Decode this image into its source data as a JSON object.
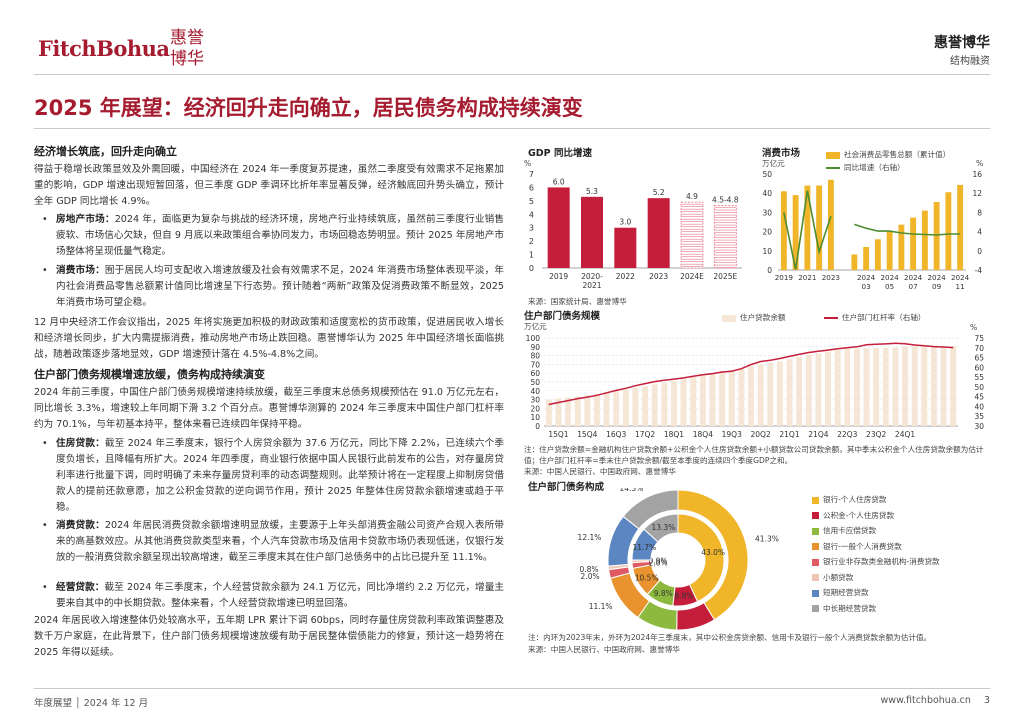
{
  "header": {
    "logo_en": "FitchBohua",
    "logo_cn": "惠誉博华",
    "brand_cn": "惠誉博华",
    "brand_sub": "结构融资"
  },
  "title": "2025 年展望：经济回升走向确立，居民债务构成持续演变",
  "section1": {
    "heading": "经济增长筑底，回升走向确立",
    "intro": "得益于稳增长政策显效及外需回暖，中国经济在 2024 年一季度复苏提速，虽然二季度受有效需求不足拖累加重的影响，GDP 增速出现短暂回落，但三季度 GDP 季调环比折年率显著反弹，经济触底回升势头确立，预计全年 GDP 同比增长 4.9%。",
    "bullet1_label": "房地产市场：",
    "bullet1_text": "2024 年，面临更为复杂与挑战的经济环境，房地产行业持续筑底，虽然前三季度行业销售疲软、市场信心欠缺，但自 9 月底以来政策组合拳协同发力，市场回稳态势明显。预计 2025 年房地产市场整体将呈现低量气稳定。",
    "bullet2_label": "消费市场：",
    "bullet2_text": "囿于居民人均可支配收入增速放缓及社会有效需求不足，2024 年消费市场整体表现平淡，年内社会消费品零售总额累计值同比增速呈下行态势。预计随着“两新”政策及促消费政策不断显效，2025 年消费市场可望企稳。",
    "para2": "12 月中央经济工作会议指出，2025 年将实施更加积极的财政政策和适度宽松的货币政策，促进居民收入增长和经济增长同步，扩大内需提振消费，推动房地产市场止跌回稳。惠誉博华认为 2025 年中国经济增长面临挑战，随着政策逐步落地显效，GDP 增速预计落在 4.5%-4.8%之间。"
  },
  "section2": {
    "heading": "住户部门债务规模增速放缓，债务构成持续演变",
    "intro": "2024 年前三季度，中国住户部门债务规模增速持续放缓，截至三季度末总债务规模预估在 91.0 万亿元左右，同比增长 3.3%，增速较上年同期下滑 3.2 个百分点。惠誉博华测算的 2024 年三季度末中国住户部门杠杆率约为 70.1%，与年初基本持平，整体来看已连续四年保持平稳。",
    "bullet1_label": "住房贷款：",
    "bullet1_text": "截至 2024 年三季度末，银行个人房贷余额为 37.6 万亿元，同比下降 2.2%，已连续六个季度负增长，且降幅有所扩大。2024 年四季度，商业银行依据中国人民银行此前发布的公告，对存量房贷利率进行批量下调，同时明确了未来存量房贷利率的动态调整规则。此举预计将在一定程度上抑制房贷借款人的提前还款意愿，加之公积金贷款的逆向调节作用，预计 2025 年整体住房贷款余额增速或趋于平稳。",
    "bullet2_label": "消费贷款：",
    "bullet2_text": "2024 年居民消费贷款余额增速明显放缓，主要源于上年头部消费金融公司资产合规入表所带来的高基数效应。从其他消费贷款类型来看，个人汽车贷款市场及信用卡贷款市场仍表现低迷，仅银行发放的一般消费贷款余额呈现出较高增速，截至三季度末其在住户部门总债务中的占比已提升至 11.1%。",
    "bullet3_label": "经营贷款：",
    "bullet3_text": "截至 2024 年三季度末，个人经营贷款余额为 24.1 万亿元，同比净增约 2.2 万亿元，增量主要来自其中的中长期贷款。整体来看，个人经营贷款增速已明显回落。",
    "para2": "2024 年居民收入增速整体仍处较高水平，五年期 LPR 累计下调 60bps，同时存量住房贷款利率政策调整惠及数千万户家庭，在此背景下，住户部门债务规模增速放缓有助于居民整体偿债能力的修复，预计这一趋势将在 2025 年得以延续。"
  },
  "charts": {
    "gdp": {
      "title": "GDP 同比增速",
      "unit": "%",
      "source": "来源：国家统计局、惠誉博华"
    },
    "consumption": {
      "title": "消费市场",
      "unit_left": "万亿元",
      "unit_right": "%",
      "legend_bar": "社会消费品零售总额（累计值）",
      "legend_line": "同比增速（右轴）"
    },
    "debt_scale": {
      "title": "住户部门债务规模",
      "unit_left": "万亿元",
      "unit_right": "%",
      "legend_bar": "住户贷款余额",
      "legend_line": "住户部门杠杆率（右轴）",
      "note": "注：住户贷款余额=金融机构住户贷款余额+公积金个人住房贷款余额+小额贷款公司贷款余额，其中季末公积金个人住房贷款余额为估计值；住户部门杠杆率=季末住户贷款余额/截至本季度的连续四个季度GDP之和。",
      "source": "来源：中国人民银行、中国政府网、惠誉博华"
    },
    "composition": {
      "title": "住户部门债务构成",
      "note": "注：内环为2023年末，外环为2024年三季度末，其中公积金房贷余额、信用卡及银行一般个人消费贷款余额为估计值。",
      "source": "来源：中国人民银行、中国政府网、惠誉博华"
    }
  },
  "chart_data": [
    {
      "type": "bar",
      "title": "GDP 同比增速",
      "categories": [
        "2019",
        "2020-2021",
        "2022",
        "2023",
        "2024E",
        "2025E"
      ],
      "values": [
        6.0,
        5.3,
        3.0,
        5.2,
        4.9,
        4.65
      ],
      "data_labels": [
        "6.0",
        "5.3",
        "3.0",
        "5.2",
        "4.9",
        "4.5-4.8"
      ],
      "ylabel": "%",
      "ylim": [
        0,
        7
      ],
      "yticks": [
        "0",
        "1",
        "2",
        "3",
        "4",
        "5",
        "6",
        "7"
      ],
      "colors": {
        "actual": "#c41e3a",
        "estimate": "#e87a8c"
      }
    },
    {
      "type": "bar",
      "title": "消费市场",
      "categories": [
        "2019",
        "2020",
        "2021",
        "2022",
        "2023",
        "2024-01",
        "2024-02",
        "2024-03",
        "2024-04",
        "2024-05",
        "2024-06",
        "2024-07",
        "2024-08",
        "2024-09",
        "2024-10",
        "2024-11"
      ],
      "x_tick_labels": [
        "2019",
        "2021",
        "2023",
        "2024\n03",
        "2024\n05",
        "2024\n07",
        "2024\n09",
        "2024\n11"
      ],
      "series": [
        {
          "name": "社会消费品零售总额（累计值）",
          "axis": "left",
          "values": [
            41,
            39,
            44,
            44,
            47,
            0,
            8.1,
            12,
            16,
            20,
            23.6,
            27.3,
            30.9,
            35.4,
            40.5,
            44.3
          ],
          "color": "#f0b528"
        },
        {
          "name": "同比增速（右轴）",
          "axis": "right",
          "values": [
            8,
            -3.9,
            12.5,
            -0.2,
            7.2,
            null,
            5.5,
            4.7,
            4.1,
            4.1,
            3.7,
            3.5,
            3.4,
            3.3,
            3.5,
            3.5
          ],
          "color": "#4e8c2f"
        }
      ],
      "ylabel_left": "万亿元",
      "ylim_left": [
        0,
        50
      ],
      "yticks_left": [
        "0",
        "10",
        "20",
        "30",
        "40",
        "50"
      ],
      "ylabel_right": "%",
      "ylim_right": [
        -4,
        16
      ],
      "yticks_right": [
        "-4",
        "0",
        "4",
        "8",
        "12",
        "16"
      ]
    },
    {
      "type": "bar",
      "title": "住户部门债务规模",
      "x_tick_labels": [
        "15Q1",
        "15Q4",
        "16Q3",
        "17Q2",
        "18Q1",
        "18Q4",
        "19Q3",
        "20Q2",
        "21Q1",
        "21Q4",
        "22Q3",
        "23Q2",
        "24Q1"
      ],
      "series": [
        {
          "name": "住户贷款余额",
          "axis": "left",
          "values": [
            30,
            31.5,
            32.5,
            33.6,
            35,
            36.4,
            38,
            39.6,
            41.5,
            43.3,
            45.2,
            47.3,
            49.3,
            51.4,
            53.5,
            55.7,
            57.5,
            59.8,
            61.9,
            64,
            65.5,
            67.7,
            69.7,
            72,
            73.4,
            76.2,
            78.6,
            81,
            82.3,
            84.5,
            86.3,
            87.5,
            87.9,
            88.3,
            88.6,
            89,
            89.5,
            90.2,
            90.7,
            91.2,
            91.4,
            90.8,
            91.0
          ],
          "color": "#f5e6d6"
        },
        {
          "name": "住户部门杠杆率（右轴）",
          "axis": "right",
          "values": [
            41,
            42,
            43,
            44,
            44.8,
            45.7,
            47,
            48.2,
            49.3,
            50.6,
            51.7,
            52.7,
            53.4,
            54,
            54.6,
            55.4,
            56.2,
            56.8,
            57.6,
            58,
            59.3,
            61.4,
            63,
            63.6,
            64.5,
            65.6,
            66.6,
            67.6,
            68.2,
            68.8,
            69.5,
            70,
            70.5,
            71.5,
            71.8,
            72,
            72.3,
            72.1,
            71.4,
            71,
            70.6,
            70.4,
            70.1
          ],
          "color": "#c41e3a"
        }
      ],
      "ylabel_left": "万亿元",
      "ylim_left": [
        0,
        100
      ],
      "yticks_left": [
        "0",
        "10",
        "20",
        "30",
        "40",
        "50",
        "60",
        "70",
        "80",
        "90",
        "100"
      ],
      "ylabel_right": "%",
      "ylim_right": [
        30,
        75
      ],
      "yticks_right": [
        "30",
        "35",
        "40",
        "45",
        "50",
        "55",
        "60",
        "65",
        "70",
        "75"
      ]
    },
    {
      "type": "pie",
      "title": "住户部门债务构成",
      "categories": [
        "银行-个人住房贷款",
        "公积金-个人住房贷款",
        "信用卡应偿贷款",
        "银行-一般个人消费贷款",
        "银行业非存款类金融机构-消费贷款",
        "小额贷款",
        "短期经营贷款",
        "中长期经营贷款"
      ],
      "series": [
        {
          "name": "外环（2024年三季度末）",
          "values": [
            41.3,
            9.0,
            9.4,
            11.1,
            2.0,
            0.8,
            12.1,
            14.3
          ],
          "labels": [
            "41.3%",
            "9.0%",
            "9.4%",
            "11.1%",
            "2.0%",
            "0.8%",
            "12.1%",
            "14.3%"
          ]
        },
        {
          "name": "内环（2023年末）",
          "values": [
            43.0,
            8.8,
            9.8,
            10.5,
            2.0,
            0.9,
            11.7,
            13.3
          ],
          "labels": [
            "43.0%",
            "8.8%",
            "9.8%",
            "10.5%",
            "2.0%",
            "0.9%",
            "11.7%",
            "13.3%"
          ]
        }
      ],
      "colors": [
        "#f0b528",
        "#c41e3a",
        "#8db93f",
        "#e8932e",
        "#e05a63",
        "#f1c5b5",
        "#5b86c2",
        "#a3a3a3"
      ]
    }
  ],
  "footer": {
    "left": "年度展望 │ 2024 年 12 月",
    "url": "www.fitchbohua.cn",
    "page": "3"
  }
}
